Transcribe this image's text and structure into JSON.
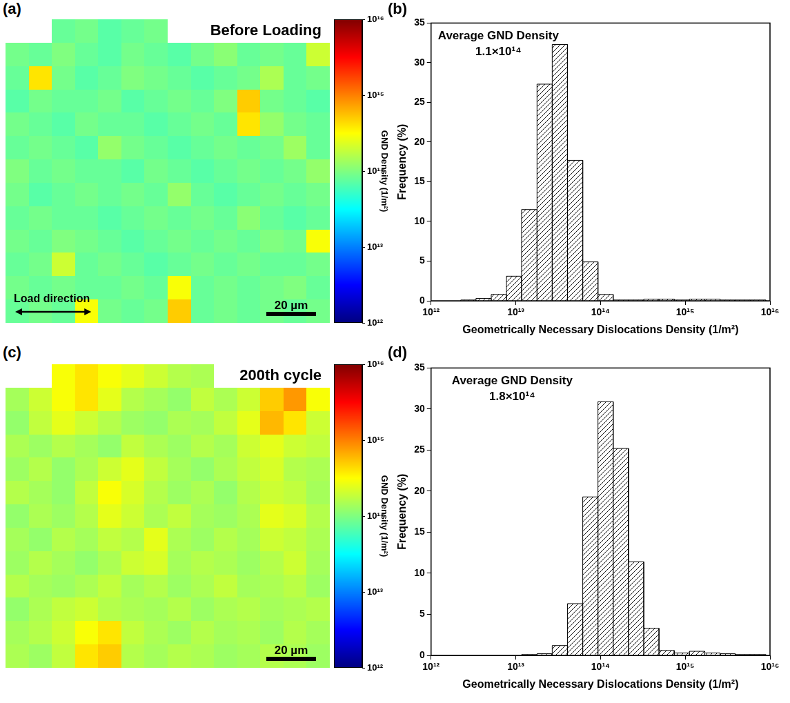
{
  "chart_data": [
    {
      "type": "heatmap",
      "panel": "(a)",
      "title": "Before Loading",
      "annotations": [
        "Load direction"
      ],
      "scale_bar": "20 µm",
      "tick_labels": false,
      "colorbar": {
        "label": "GND Density (1/m²)",
        "range": [
          1000000000000.0,
          1e+16
        ],
        "log": true,
        "ticks": [
          {
            "value": 1000000000000.0,
            "label": "10¹²"
          },
          {
            "value": 10000000000000.0,
            "label": "10¹³"
          },
          {
            "value": 100000000000000.0,
            "label": "10¹⁴"
          },
          {
            "value": 1000000000000000.0,
            "label": "10¹⁵"
          },
          {
            "value": 1e+16,
            "label": "10¹⁶"
          }
        ]
      },
      "cells": [
        [
          null,
          null,
          80000000000000.0,
          90000000000000.0,
          70000000000000.0,
          80000000000000.0,
          90000000000000.0,
          null,
          null,
          null,
          null,
          null,
          null,
          null
        ],
        [
          90000000000000.0,
          80000000000000.0,
          100000000000000.0,
          80000000000000.0,
          70000000000000.0,
          90000000000000.0,
          80000000000000.0,
          70000000000000.0,
          90000000000000.0,
          110000000000000.0,
          80000000000000.0,
          90000000000000.0,
          80000000000000.0,
          200000000000000.0
        ],
        [
          80000000000000.0,
          400000000000000.0,
          90000000000000.0,
          70000000000000.0,
          80000000000000.0,
          100000000000000.0,
          90000000000000.0,
          80000000000000.0,
          70000000000000.0,
          80000000000000.0,
          90000000000000.0,
          150000000000000.0,
          80000000000000.0,
          90000000000000.0
        ],
        [
          70000000000000.0,
          90000000000000.0,
          80000000000000.0,
          80000000000000.0,
          90000000000000.0,
          70000000000000.0,
          80000000000000.0,
          90000000000000.0,
          80000000000000.0,
          100000000000000.0,
          500000000000000.0,
          90000000000000.0,
          80000000000000.0,
          70000000000000.0
        ],
        [
          90000000000000.0,
          80000000000000.0,
          70000000000000.0,
          90000000000000.0,
          80000000000000.0,
          80000000000000.0,
          70000000000000.0,
          80000000000000.0,
          90000000000000.0,
          80000000000000.0,
          400000000000000.0,
          120000000000000.0,
          90000000000000.0,
          80000000000000.0
        ],
        [
          80000000000000.0,
          90000000000000.0,
          80000000000000.0,
          70000000000000.0,
          120000000000000.0,
          90000000000000.0,
          80000000000000.0,
          70000000000000.0,
          80000000000000.0,
          90000000000000.0,
          80000000000000.0,
          90000000000000.0,
          130000000000000.0,
          80000000000000.0
        ],
        [
          100000000000000.0,
          80000000000000.0,
          90000000000000.0,
          80000000000000.0,
          80000000000000.0,
          70000000000000.0,
          90000000000000.0,
          80000000000000.0,
          70000000000000.0,
          80000000000000.0,
          90000000000000.0,
          80000000000000.0,
          90000000000000.0,
          120000000000000.0
        ],
        [
          90000000000000.0,
          70000000000000.0,
          80000000000000.0,
          90000000000000.0,
          80000000000000.0,
          90000000000000.0,
          80000000000000.0,
          120000000000000.0,
          80000000000000.0,
          70000000000000.0,
          80000000000000.0,
          90000000000000.0,
          80000000000000.0,
          90000000000000.0
        ],
        [
          80000000000000.0,
          90000000000000.0,
          80000000000000.0,
          80000000000000.0,
          70000000000000.0,
          80000000000000.0,
          90000000000000.0,
          80000000000000.0,
          90000000000000.0,
          80000000000000.0,
          110000000000000.0,
          80000000000000.0,
          70000000000000.0,
          80000000000000.0
        ],
        [
          90000000000000.0,
          80000000000000.0,
          100000000000000.0,
          90000000000000.0,
          80000000000000.0,
          70000000000000.0,
          80000000000000.0,
          90000000000000.0,
          80000000000000.0,
          90000000000000.0,
          80000000000000.0,
          100000000000000.0,
          90000000000000.0,
          300000000000000.0
        ],
        [
          80000000000000.0,
          90000000000000.0,
          200000000000000.0,
          80000000000000.0,
          90000000000000.0,
          80000000000000.0,
          70000000000000.0,
          80000000000000.0,
          90000000000000.0,
          80000000000000.0,
          90000000000000.0,
          80000000000000.0,
          80000000000000.0,
          90000000000000.0
        ],
        [
          90000000000000.0,
          80000000000000.0,
          90000000000000.0,
          80000000000000.0,
          80000000000000.0,
          90000000000000.0,
          80000000000000.0,
          300000000000000.0,
          80000000000000.0,
          90000000000000.0,
          80000000000000.0,
          90000000000000.0,
          100000000000000.0,
          80000000000000.0
        ],
        [
          80000000000000.0,
          90000000000000.0,
          80000000000000.0,
          300000000000000.0,
          90000000000000.0,
          80000000000000.0,
          90000000000000.0,
          500000000000000.0,
          80000000000000.0,
          90000000000000.0,
          80000000000000.0,
          90000000000000.0,
          80000000000000.0,
          90000000000000.0
        ]
      ]
    },
    {
      "type": "histogram",
      "panel": "(b)",
      "annotations": [
        "Average GND Density",
        "1.1×10¹⁴"
      ],
      "x_label": "Geometrically Necessary Dislocations Density (1/m²)",
      "y_label": "Frequency (%)",
      "color": "#000000",
      "log": "x",
      "grid": false,
      "xlim": [
        1000000000000.0,
        1e+16
      ],
      "xticks": [
        {
          "value": 1000000000000.0,
          "label": "10¹²"
        },
        {
          "value": 10000000000000.0,
          "label": "10¹³"
        },
        {
          "value": 100000000000000.0,
          "label": "10¹⁴"
        },
        {
          "value": 1000000000000000.0,
          "label": "10¹⁵"
        },
        {
          "value": 1e+16,
          "label": "10¹⁶"
        }
      ],
      "ylim": [
        0,
        35
      ],
      "yticks": [
        0,
        5,
        10,
        15,
        20,
        25,
        30,
        35
      ],
      "bins": [
        2240000000000.0,
        3390000000000.0,
        5130000000000.0,
        7760000000000.0,
        11700000000000.0,
        17800000000000.0,
        26900000000000.0,
        40700000000000.0,
        61700000000000.0,
        93300000000000.0,
        141000000000000.0,
        214000000000000.0,
        324000000000000.0,
        490000000000000.0,
        741000000000000.0,
        1120000000000000.0,
        1700000000000000.0,
        2570000000000000.0,
        3890000000000000.0,
        5890000000000000.0,
        8910000000000000.0
      ],
      "counts": [
        0.1,
        0.3,
        0.8,
        3.1,
        11.5,
        27.3,
        32.3,
        17.7,
        4.9,
        0.8,
        0.1,
        0.1,
        0.2,
        0.2,
        0.1,
        0.2,
        0.2,
        0.1,
        0.1,
        0.1
      ]
    },
    {
      "type": "heatmap",
      "panel": "(c)",
      "title": "200th cycle",
      "scale_bar": "20 µm",
      "tick_labels": false,
      "colorbar": {
        "label": "GND Density (1/m²)",
        "range": [
          1000000000000.0,
          1e+16
        ],
        "log": true,
        "ticks": [
          {
            "value": 1000000000000.0,
            "label": "10¹²"
          },
          {
            "value": 10000000000000.0,
            "label": "10¹³"
          },
          {
            "value": 100000000000000.0,
            "label": "10¹⁴"
          },
          {
            "value": 1000000000000000.0,
            "label": "10¹⁵"
          },
          {
            "value": 1e+16,
            "label": "10¹⁶"
          }
        ]
      },
      "cells": [
        [
          null,
          null,
          300000000000000.0,
          400000000000000.0,
          300000000000000.0,
          250000000000000.0,
          200000000000000.0,
          160000000000000.0,
          150000000000000.0,
          null,
          null,
          null,
          null,
          null
        ],
        [
          140000000000000.0,
          200000000000000.0,
          300000000000000.0,
          400000000000000.0,
          250000000000000.0,
          160000000000000.0,
          140000000000000.0,
          120000000000000.0,
          180000000000000.0,
          150000000000000.0,
          200000000000000.0,
          500000000000000.0,
          800000000000000.0,
          300000000000000.0
        ],
        [
          120000000000000.0,
          180000000000000.0,
          250000000000000.0,
          200000000000000.0,
          160000000000000.0,
          130000000000000.0,
          120000000000000.0,
          150000000000000.0,
          140000000000000.0,
          180000000000000.0,
          250000000000000.0,
          600000000000000.0,
          400000000000000.0,
          200000000000000.0
        ],
        [
          150000000000000.0,
          130000000000000.0,
          160000000000000.0,
          140000000000000.0,
          120000000000000.0,
          180000000000000.0,
          150000000000000.0,
          130000000000000.0,
          160000000000000.0,
          140000000000000.0,
          200000000000000.0,
          250000000000000.0,
          200000000000000.0,
          180000000000000.0
        ],
        [
          130000000000000.0,
          160000000000000.0,
          120000000000000.0,
          150000000000000.0,
          200000000000000.0,
          250000000000000.0,
          180000000000000.0,
          140000000000000.0,
          120000000000000.0,
          150000000000000.0,
          180000000000000.0,
          220000000000000.0,
          160000000000000.0,
          150000000000000.0
        ],
        [
          160000000000000.0,
          140000000000000.0,
          120000000000000.0,
          180000000000000.0,
          300000000000000.0,
          220000000000000.0,
          160000000000000.0,
          130000000000000.0,
          150000000000000.0,
          120000000000000.0,
          160000000000000.0,
          200000000000000.0,
          180000000000000.0,
          140000000000000.0
        ],
        [
          120000000000000.0,
          150000000000000.0,
          130000000000000.0,
          160000000000000.0,
          250000000000000.0,
          200000000000000.0,
          150000000000000.0,
          180000000000000.0,
          140000000000000.0,
          130000000000000.0,
          150000000000000.0,
          250000000000000.0,
          220000000000000.0,
          160000000000000.0
        ],
        [
          140000000000000.0,
          120000000000000.0,
          160000000000000.0,
          140000000000000.0,
          180000000000000.0,
          160000000000000.0,
          250000000000000.0,
          150000000000000.0,
          130000000000000.0,
          160000000000000.0,
          140000000000000.0,
          200000000000000.0,
          180000000000000.0,
          150000000000000.0
        ],
        [
          130000000000000.0,
          160000000000000.0,
          140000000000000.0,
          120000000000000.0,
          150000000000000.0,
          200000000000000.0,
          220000000000000.0,
          140000000000000.0,
          160000000000000.0,
          150000000000000.0,
          130000000000000.0,
          160000000000000.0,
          200000000000000.0,
          140000000000000.0
        ],
        [
          160000000000000.0,
          140000000000000.0,
          130000000000000.0,
          150000000000000.0,
          180000000000000.0,
          140000000000000.0,
          160000000000000.0,
          130000000000000.0,
          150000000000000.0,
          180000000000000.0,
          140000000000000.0,
          150000000000000.0,
          170000000000000.0,
          130000000000000.0
        ],
        [
          120000000000000.0,
          150000000000000.0,
          180000000000000.0,
          200000000000000.0,
          160000000000000.0,
          150000000000000.0,
          140000000000000.0,
          160000000000000.0,
          130000000000000.0,
          150000000000000.0,
          160000000000000.0,
          140000000000000.0,
          150000000000000.0,
          160000000000000.0
        ],
        [
          140000000000000.0,
          160000000000000.0,
          200000000000000.0,
          300000000000000.0,
          400000000000000.0,
          180000000000000.0,
          150000000000000.0,
          130000000000000.0,
          160000000000000.0,
          140000000000000.0,
          150000000000000.0,
          130000000000000.0,
          160000000000000.0,
          140000000000000.0
        ],
        [
          150000000000000.0,
          130000000000000.0,
          180000000000000.0,
          400000000000000.0,
          500000000000000.0,
          160000000000000.0,
          140000000000000.0,
          160000000000000.0,
          150000000000000.0,
          130000000000000.0,
          140000000000000.0,
          160000000000000.0,
          150000000000000.0,
          130000000000000.0
        ]
      ]
    },
    {
      "type": "histogram",
      "panel": "(d)",
      "annotations": [
        "Average GND Density",
        "1.8×10¹⁴"
      ],
      "x_label": "Geometrically Necessary Dislocations Density (1/m²)",
      "y_label": "Frequency (%)",
      "color": "#000000",
      "log": "x",
      "grid": false,
      "xlim": [
        1000000000000.0,
        1e+16
      ],
      "xticks": [
        {
          "value": 1000000000000.0,
          "label": "10¹²"
        },
        {
          "value": 10000000000000.0,
          "label": "10¹³"
        },
        {
          "value": 100000000000000.0,
          "label": "10¹⁴"
        },
        {
          "value": 1000000000000000.0,
          "label": "10¹⁵"
        },
        {
          "value": 1e+16,
          "label": "10¹⁶"
        }
      ],
      "ylim": [
        0,
        35
      ],
      "yticks": [
        0,
        5,
        10,
        15,
        20,
        25,
        30,
        35
      ],
      "bins": [
        11700000000000.0,
        17800000000000.0,
        26900000000000.0,
        40700000000000.0,
        61700000000000.0,
        93300000000000.0,
        141000000000000.0,
        214000000000000.0,
        324000000000000.0,
        490000000000000.0,
        741000000000000.0,
        1120000000000000.0,
        1700000000000000.0,
        2570000000000000.0,
        3890000000000000.0,
        5890000000000000.0,
        8910000000000000.0
      ],
      "counts": [
        0.1,
        0.2,
        1.2,
        6.3,
        19.3,
        30.9,
        25.2,
        11.4,
        3.3,
        0.6,
        0.3,
        0.5,
        0.3,
        0.2,
        0.1,
        0.1
      ]
    }
  ]
}
